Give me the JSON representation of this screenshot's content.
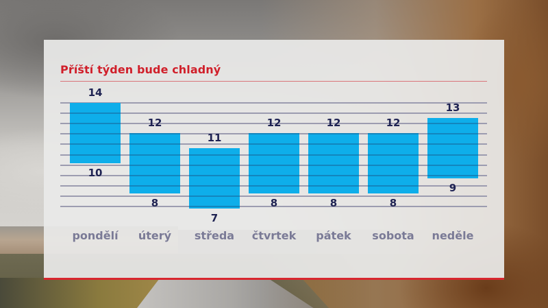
{
  "title": "Příští týden bude chladný",
  "colors": {
    "title": "#d01f2a",
    "bar": "#0eaeea",
    "value_text": "#1e2252",
    "day_text": "#7a7a96",
    "panel_border": "#d8262e"
  },
  "days": [
    {
      "label": "pondělí",
      "max": "14",
      "min": "10"
    },
    {
      "label": "úterý",
      "max": "12",
      "min": "8"
    },
    {
      "label": "středa",
      "max": "11",
      "min": "7"
    },
    {
      "label": "čtvrtek",
      "max": "12",
      "min": "8"
    },
    {
      "label": "pátek",
      "max": "12",
      "min": "8"
    },
    {
      "label": "sobota",
      "max": "12",
      "min": "8"
    },
    {
      "label": "neděle",
      "max": "13",
      "min": "9"
    }
  ],
  "chart_data": {
    "type": "bar",
    "subtype": "floating-range",
    "title": "Příští týden bude chladný",
    "xlabel": "",
    "ylabel": "",
    "categories": [
      "pondělí",
      "úterý",
      "středa",
      "čtvrtek",
      "pátek",
      "sobota",
      "neděle"
    ],
    "series": [
      {
        "name": "max",
        "values": [
          14,
          12,
          11,
          12,
          12,
          12,
          13
        ]
      },
      {
        "name": "min",
        "values": [
          10,
          8,
          7,
          8,
          8,
          8,
          9
        ]
      }
    ],
    "grid": true,
    "legend": "none",
    "ylim": [
      7,
      14
    ]
  }
}
